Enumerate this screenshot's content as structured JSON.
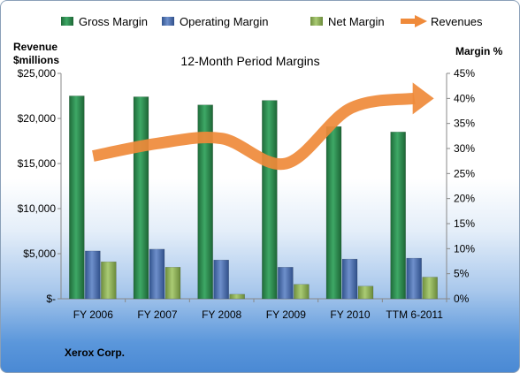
{
  "chart_data": {
    "type": "bar",
    "title": "12-Month Period Margins",
    "categories": [
      "FY 2006",
      "FY 2007",
      "FY 2008",
      "FY 2009",
      "FY 2010",
      "TTM 6-2011"
    ],
    "series": [
      {
        "name": "Gross Margin",
        "axis": "left",
        "type": "bar",
        "color": "#2e8b4e",
        "values": [
          22500,
          22400,
          21500,
          22000,
          19100,
          18500
        ]
      },
      {
        "name": "Operating Margin",
        "axis": "left",
        "type": "bar",
        "color": "#4a6fb0",
        "values": [
          5300,
          5500,
          4300,
          3500,
          4400,
          4500
        ]
      },
      {
        "name": "Net Margin",
        "axis": "left",
        "type": "bar",
        "color": "#8fb159",
        "values": [
          4100,
          3500,
          500,
          1600,
          1400,
          2400
        ]
      },
      {
        "name": "Revenues",
        "axis": "right",
        "type": "line-arrow",
        "color": "#ef8a3a",
        "values": [
          28.5,
          31,
          32,
          27,
          38,
          40
        ]
      }
    ],
    "y_left": {
      "label_line1": "Revenue",
      "label_line2": "$millions",
      "min": 0,
      "max": 25000,
      "ticks": [
        "$-",
        "$5,000",
        "$10,000",
        "$15,000",
        "$20,000",
        "$25,000"
      ]
    },
    "y_right": {
      "label": "Margin %",
      "min": 0,
      "max": 45,
      "ticks": [
        "0%",
        "5%",
        "10%",
        "15%",
        "20%",
        "25%",
        "30%",
        "35%",
        "40%",
        "45%"
      ]
    },
    "legend_position": "top",
    "grid": false
  },
  "footer": {
    "company": "Xerox Corp."
  }
}
